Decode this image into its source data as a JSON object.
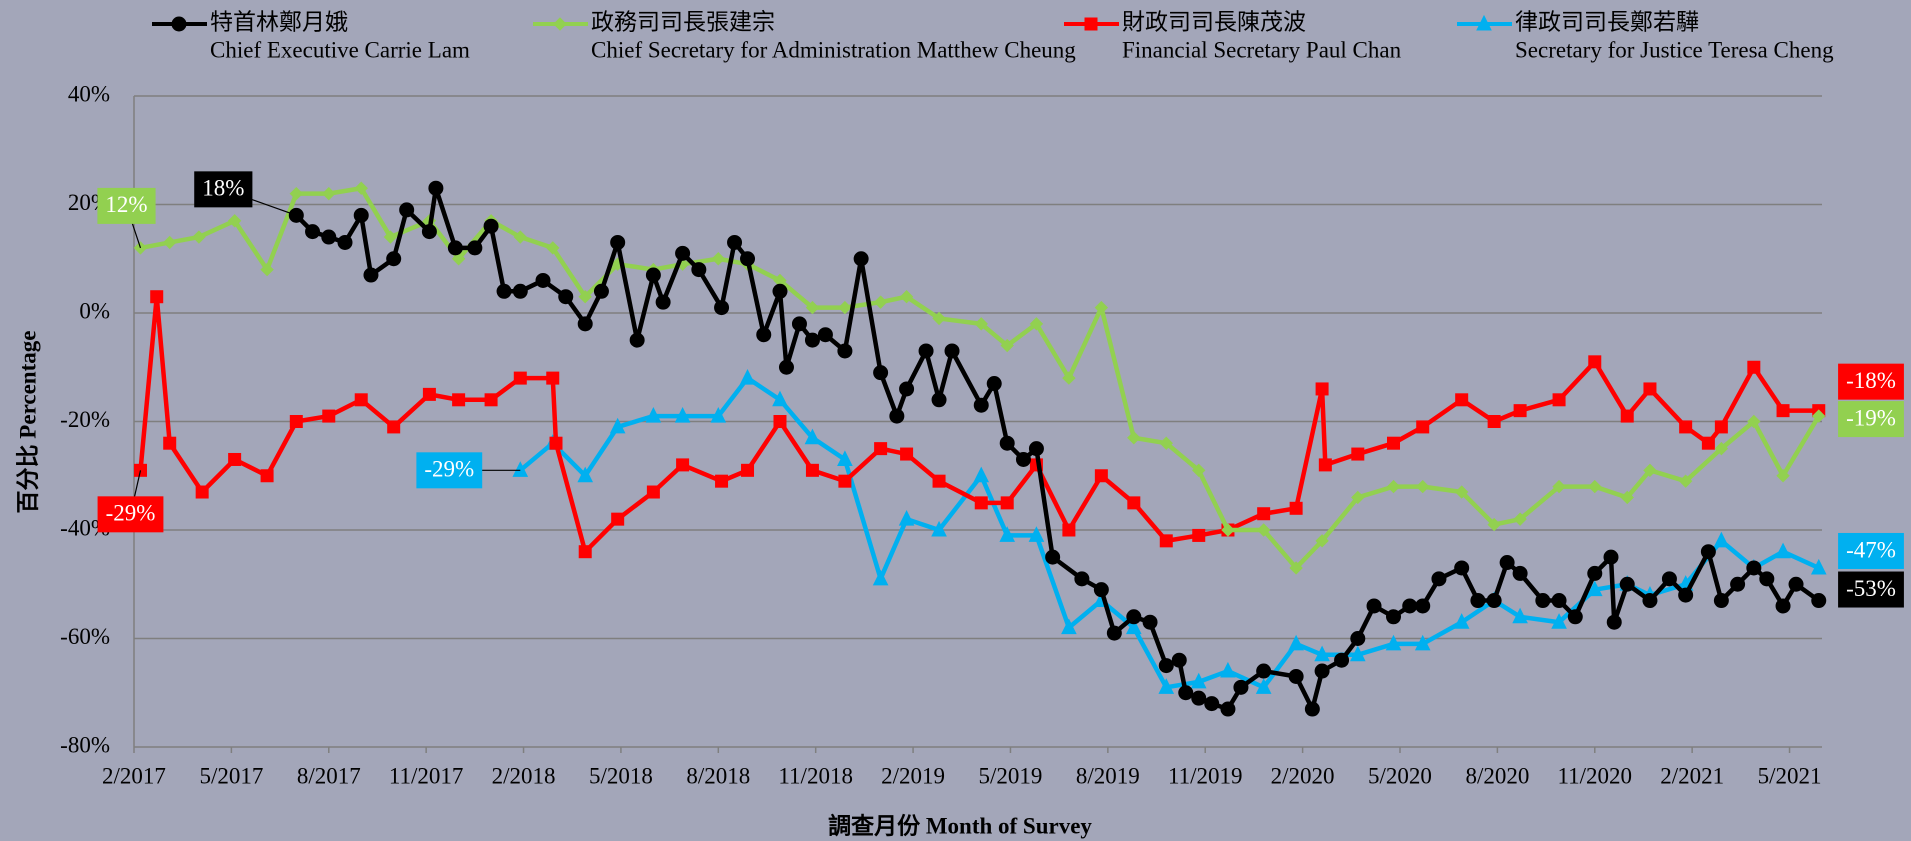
{
  "chart_data": {
    "type": "line",
    "x_label": "調查月份 Month of Survey",
    "y_label": "百分比 Percentage",
    "xlim": [
      0,
      52
    ],
    "xticks": [
      {
        "value": 0,
        "label": "2/2017"
      },
      {
        "value": 3,
        "label": "5/2017"
      },
      {
        "value": 6,
        "label": "8/2017"
      },
      {
        "value": 9,
        "label": "11/2017"
      },
      {
        "value": 12,
        "label": "2/2018"
      },
      {
        "value": 15,
        "label": "5/2018"
      },
      {
        "value": 18,
        "label": "8/2018"
      },
      {
        "value": 21,
        "label": "11/2018"
      },
      {
        "value": 24,
        "label": "2/2019"
      },
      {
        "value": 27,
        "label": "5/2019"
      },
      {
        "value": 30,
        "label": "8/2019"
      },
      {
        "value": 33,
        "label": "11/2019"
      },
      {
        "value": 36,
        "label": "2/2020"
      },
      {
        "value": 39,
        "label": "5/2020"
      },
      {
        "value": 42,
        "label": "8/2020"
      },
      {
        "value": 45,
        "label": "11/2020"
      },
      {
        "value": 48,
        "label": "2/2021"
      },
      {
        "value": 51,
        "label": "5/2021"
      }
    ],
    "ylim": [
      -80,
      40
    ],
    "yticks": [
      {
        "value": 40,
        "label": "40%"
      },
      {
        "value": 20,
        "label": "20%"
      },
      {
        "value": 0,
        "label": "0%"
      },
      {
        "value": -20,
        "label": "-20%"
      },
      {
        "value": -40,
        "label": "-40%"
      },
      {
        "value": -60,
        "label": "-60%"
      },
      {
        "value": -80,
        "label": "-80%"
      }
    ],
    "grid": true,
    "series": [
      {
        "name": "特首林鄭月娥",
        "name_en": "Chief Executive Carrie Lam",
        "color": "#000000",
        "marker": "circle",
        "start_label": "18%",
        "end_label": "-53%",
        "x": [
          5.0,
          5.5,
          6.0,
          6.5,
          7.0,
          7.3,
          8.0,
          8.4,
          9.1,
          9.3,
          9.9,
          10.5,
          11.0,
          11.4,
          11.9,
          12.6,
          13.3,
          13.9,
          14.4,
          14.9,
          15.5,
          16.0,
          16.3,
          16.9,
          17.4,
          18.1,
          18.5,
          18.9,
          19.4,
          19.9,
          20.1,
          20.5,
          20.9,
          21.3,
          21.9,
          22.4,
          23.0,
          23.5,
          23.8,
          24.4,
          24.8,
          25.2,
          26.1,
          26.5,
          26.9,
          27.4,
          27.8,
          28.3,
          29.2,
          29.8,
          30.2,
          30.8,
          31.3,
          31.8,
          32.2,
          32.4,
          32.8,
          33.2,
          33.7,
          34.1,
          34.8,
          35.8,
          36.3,
          36.6,
          37.2,
          37.7,
          38.2,
          38.8,
          39.3,
          39.7,
          40.2,
          40.9,
          41.4,
          41.9,
          42.3,
          42.7,
          43.4,
          43.9,
          44.4,
          45.0,
          45.5,
          45.6,
          46.0,
          46.7,
          47.3,
          47.8,
          48.5,
          48.9,
          49.4,
          49.9,
          50.3,
          50.8,
          51.2,
          51.9
        ],
        "values": [
          18,
          15,
          14,
          13,
          18,
          7,
          10,
          19,
          15,
          23,
          12,
          12,
          16,
          4,
          4,
          6,
          3,
          -2,
          4,
          13,
          -5,
          7,
          2,
          11,
          8,
          1,
          13,
          10,
          -4,
          4,
          -10,
          -2,
          -5,
          -4,
          -7,
          10,
          -11,
          -19,
          -14,
          -7,
          -16,
          -7,
          -17,
          -13,
          -24,
          -27,
          -25,
          -45,
          -49,
          -51,
          -59,
          -56,
          -57,
          -65,
          -64,
          -70,
          -71,
          -72,
          -73,
          -69,
          -66,
          -67,
          -73,
          -66,
          -64,
          -60,
          -54,
          -56,
          -54,
          -54,
          -49,
          -47,
          -53,
          -53,
          -46,
          -48,
          -53,
          -53,
          -56,
          -48,
          -45,
          -57,
          -50,
          -53,
          -49,
          -52,
          -44,
          -53,
          -50,
          -47,
          -49,
          -54,
          -50,
          -53
        ]
      },
      {
        "name": "政務司司長張建宗",
        "name_en": "Chief Secretary for Administration Matthew Cheung",
        "color": "#92d050",
        "marker": "diamond",
        "start_label": "12%",
        "end_label": "-19%",
        "x": [
          0.2,
          1.1,
          2.0,
          3.1,
          4.1,
          5.0,
          6.0,
          7.0,
          7.9,
          9.1,
          10.0,
          11.0,
          11.9,
          12.9,
          13.9,
          14.9,
          16.0,
          16.9,
          18.0,
          18.9,
          19.9,
          20.9,
          21.9,
          23.0,
          23.8,
          24.8,
          26.1,
          26.9,
          27.8,
          28.8,
          29.8,
          30.8,
          31.8,
          32.8,
          33.7,
          34.8,
          35.8,
          36.6,
          37.7,
          38.8,
          39.7,
          40.9,
          41.9,
          42.7,
          43.9,
          45.0,
          46.0,
          46.7,
          47.8,
          48.9,
          49.9,
          50.8,
          51.9
        ],
        "values": [
          12,
          13,
          14,
          17,
          8,
          22,
          22,
          23,
          14,
          17,
          10,
          17,
          14,
          12,
          3,
          9,
          8,
          9,
          10,
          9,
          6,
          1,
          1,
          2,
          3,
          -1,
          -2,
          -6,
          -2,
          -12,
          1,
          -23,
          -24,
          -29,
          -40,
          -40,
          -47,
          -42,
          -34,
          -32,
          -32,
          -33,
          -39,
          -38,
          -32,
          -32,
          -34,
          -29,
          -31,
          -25,
          -20,
          -30,
          -19
        ]
      },
      {
        "name": "財政司司長陳茂波",
        "name_en": "Financial Secretary Paul Chan",
        "color": "#ff0000",
        "marker": "square",
        "start_label": "-29%",
        "end_label": "-18%",
        "x": [
          0.2,
          0.7,
          1.1,
          2.1,
          3.1,
          4.1,
          5.0,
          6.0,
          7.0,
          8.0,
          9.1,
          10.0,
          11.0,
          11.9,
          12.9,
          13.0,
          13.9,
          14.9,
          16.0,
          16.9,
          18.1,
          18.9,
          19.9,
          20.9,
          21.9,
          23.0,
          23.8,
          24.8,
          26.1,
          26.9,
          27.8,
          28.8,
          29.8,
          30.8,
          31.8,
          32.8,
          33.7,
          34.8,
          35.8,
          36.6,
          36.7,
          37.7,
          38.8,
          39.7,
          40.9,
          41.9,
          42.7,
          43.9,
          45.0,
          46.0,
          46.7,
          47.8,
          48.5,
          48.9,
          49.9,
          50.8,
          51.9
        ],
        "values": [
          -29,
          3,
          -24,
          -33,
          -27,
          -30,
          -20,
          -19,
          -16,
          -21,
          -15,
          -16,
          -16,
          -12,
          -12,
          -24,
          -44,
          -38,
          -33,
          -28,
          -31,
          -29,
          -20,
          -29,
          -31,
          -25,
          -26,
          -31,
          -35,
          -35,
          -28,
          -40,
          -30,
          -35,
          -42,
          -41,
          -40,
          -37,
          -36,
          -14,
          -28,
          -26,
          -24,
          -21,
          -16,
          -20,
          -18,
          -16,
          -9,
          -19,
          -14,
          -21,
          -24,
          -21,
          -10,
          -18,
          -18
        ]
      },
      {
        "name": "律政司司長鄭若驊",
        "name_en": "Secretary for Justice Teresa Cheng",
        "color": "#00b0f0",
        "marker": "triangle",
        "start_label": "-29%",
        "end_label": "-47%",
        "x": [
          11.9,
          12.9,
          13.9,
          14.9,
          16.0,
          16.9,
          18.0,
          18.9,
          19.9,
          20.9,
          21.9,
          23.0,
          23.8,
          24.8,
          26.1,
          26.9,
          27.8,
          28.8,
          29.8,
          30.8,
          31.8,
          32.8,
          33.7,
          34.8,
          35.8,
          36.6,
          37.7,
          38.8,
          39.7,
          40.9,
          41.9,
          42.7,
          43.9,
          45.0,
          46.0,
          46.7,
          47.8,
          48.9,
          49.9,
          50.8,
          51.9
        ],
        "values": [
          -29,
          -24,
          -30,
          -21,
          -19,
          -19,
          -19,
          -12,
          -16,
          -23,
          -27,
          -49,
          -38,
          -40,
          -30,
          -41,
          -41,
          -58,
          -53,
          -58,
          -69,
          -68,
          -66,
          -69,
          -61,
          -63,
          -63,
          -61,
          -61,
          -57,
          -53,
          -56,
          -57,
          -51,
          -50,
          -52,
          -50,
          -42,
          -47,
          -44,
          -47
        ]
      }
    ]
  }
}
